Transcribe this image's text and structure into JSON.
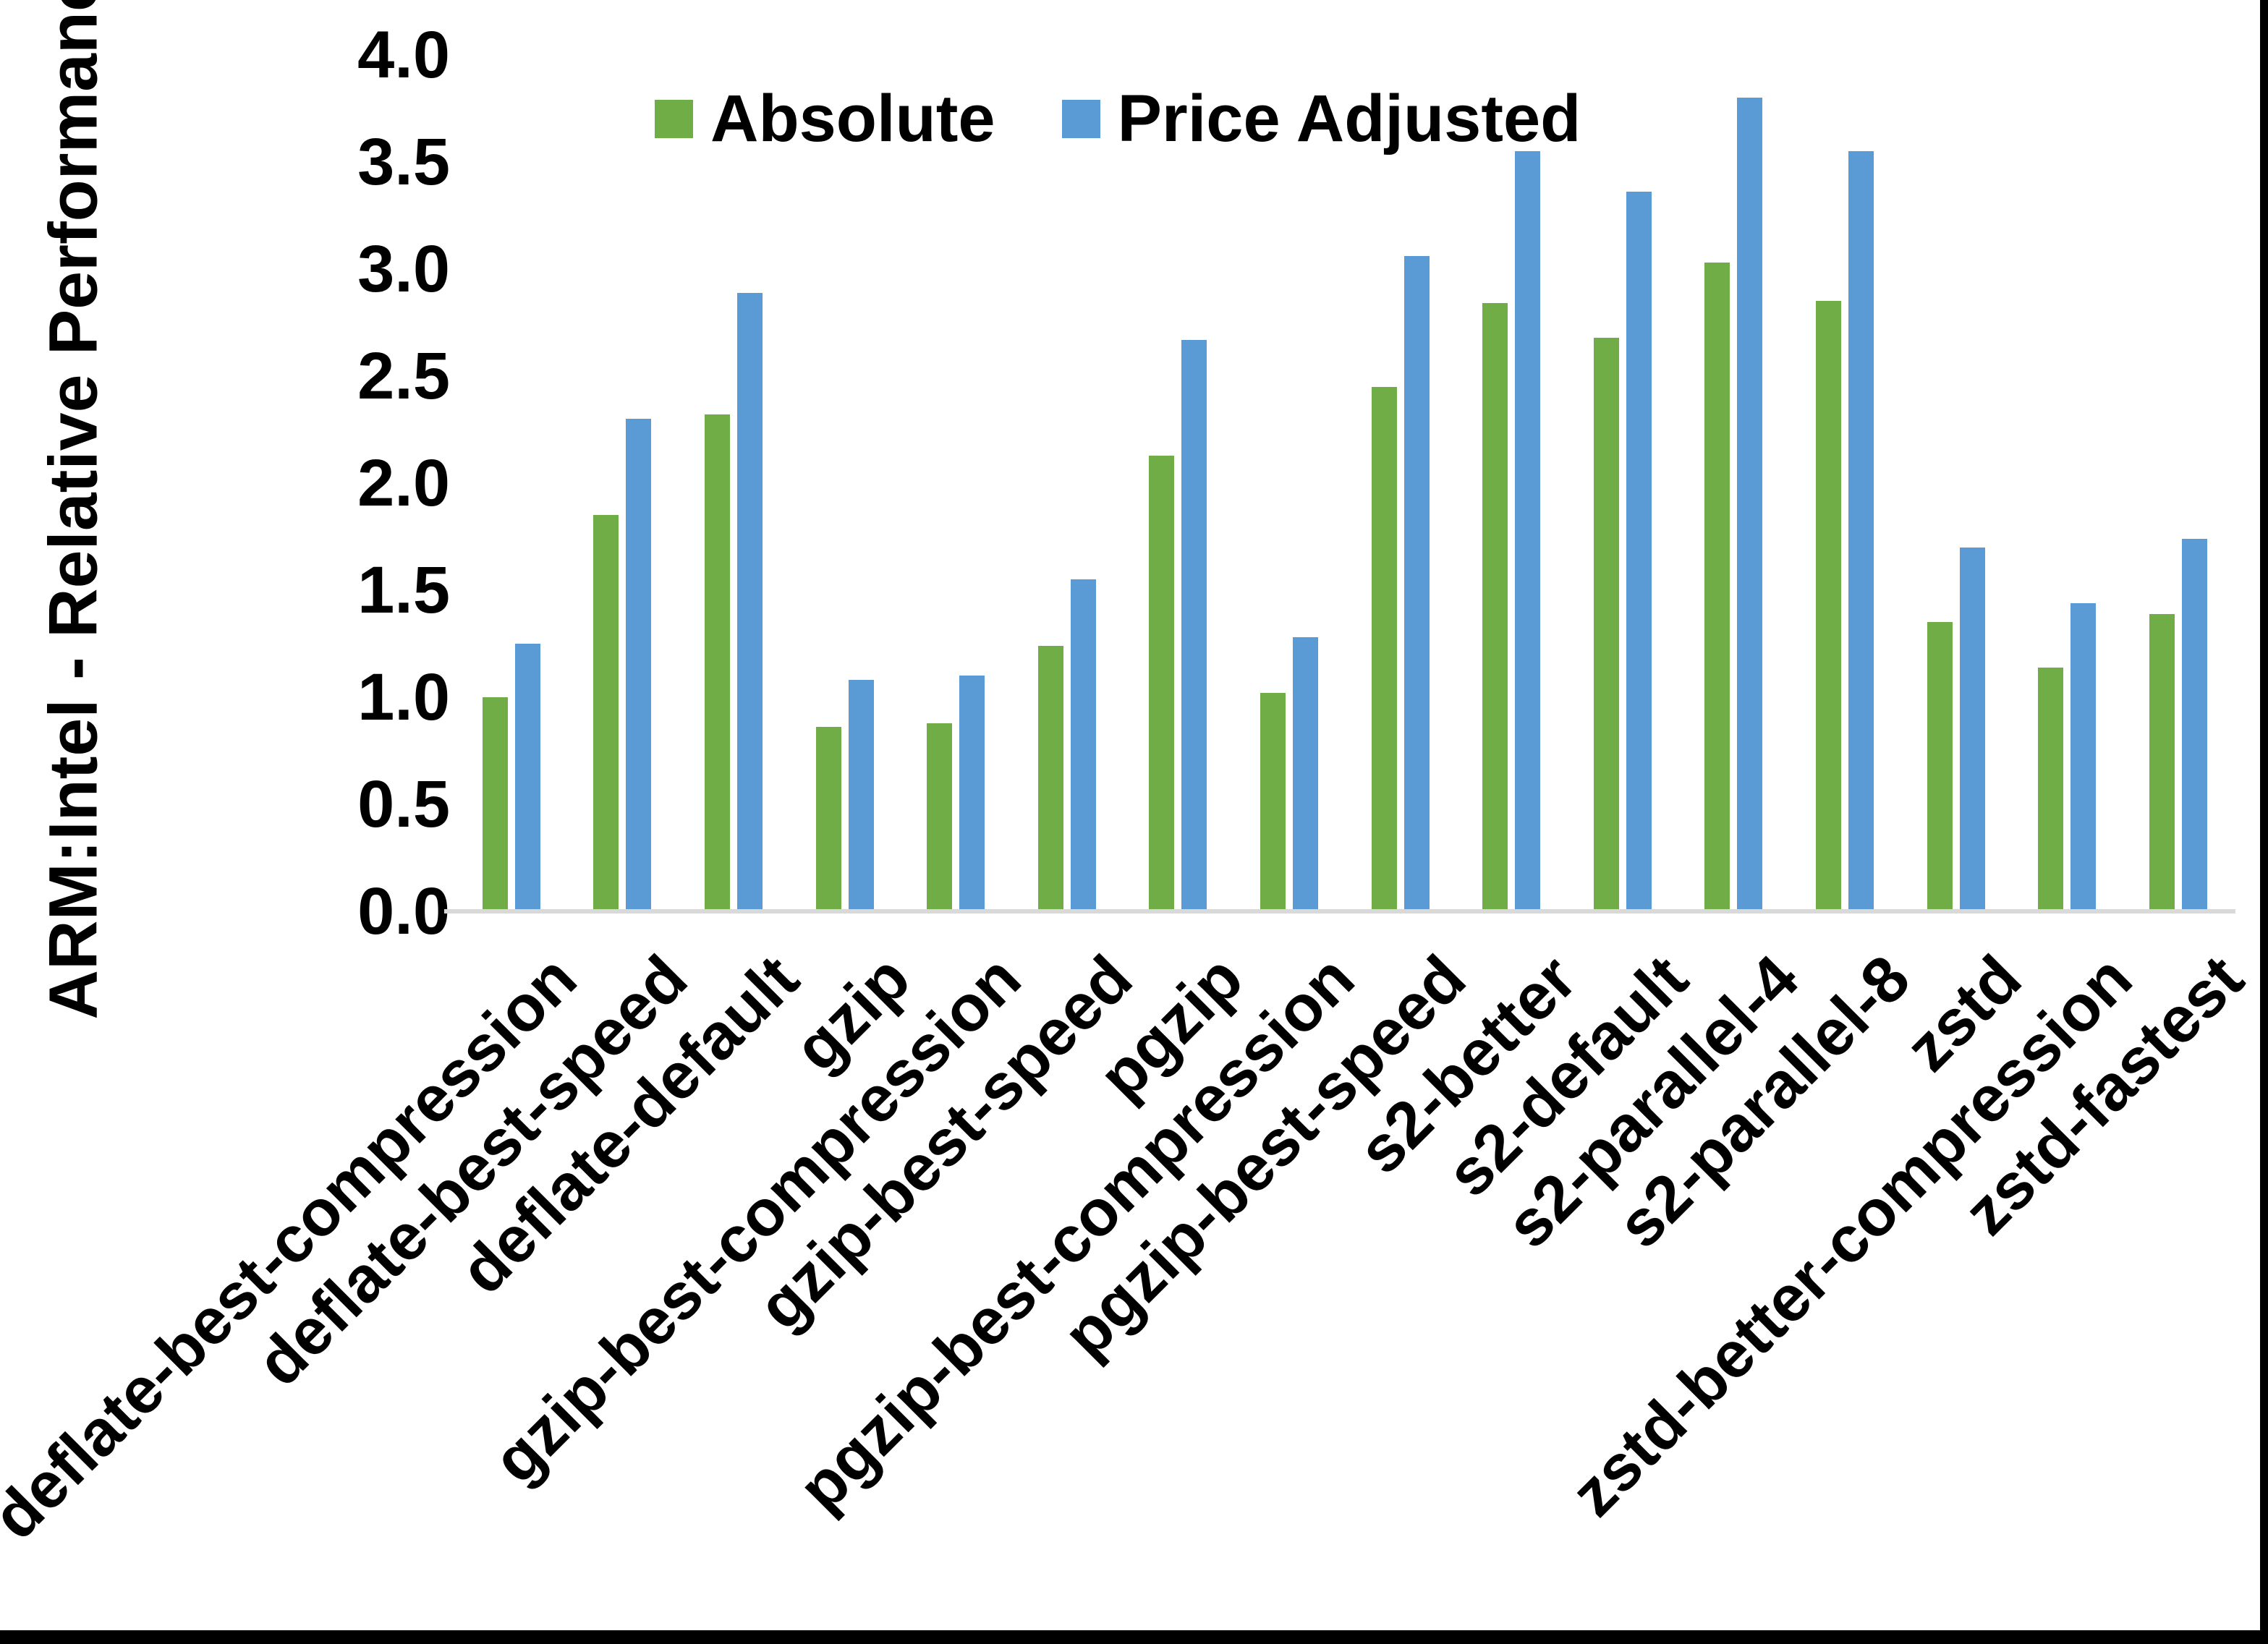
{
  "chart_data": {
    "type": "bar",
    "title": "",
    "xlabel": "",
    "ylabel": "ARM:Intel - Relative Performance",
    "ylim": [
      0.0,
      4.0
    ],
    "y_tick_step": 0.5,
    "y_ticks": [
      0.0,
      0.5,
      1.0,
      1.5,
      2.0,
      2.5,
      3.0,
      3.5,
      4.0
    ],
    "grid": false,
    "legend_position": "top-center",
    "categories": [
      "deflate-best-compression",
      "deflate-best-speed",
      "deflate-default",
      "gzip",
      "gzip-best-compression",
      "gzip-best-speed",
      "pgzip",
      "pgzip-best-compression",
      "pgzip-best-speed",
      "s2-better",
      "s2-default",
      "s2-parallel-4",
      "s2-parallel-8",
      "zstd",
      "zstd-better-compression",
      "zstd-fastest"
    ],
    "series": [
      {
        "name": "Absolute",
        "color": "#70AD47",
        "values": [
          1.0,
          1.85,
          2.32,
          0.86,
          0.88,
          1.24,
          2.13,
          1.02,
          2.45,
          2.84,
          2.68,
          3.03,
          2.85,
          1.35,
          1.14,
          1.39
        ]
      },
      {
        "name": "Price Adjusted",
        "color": "#5B9BD5",
        "values": [
          1.25,
          2.3,
          2.89,
          1.08,
          1.1,
          1.55,
          2.67,
          1.28,
          3.06,
          3.55,
          3.36,
          3.8,
          3.55,
          1.7,
          1.44,
          1.74
        ]
      }
    ]
  },
  "colors": {
    "background": "#FFFFFF",
    "axis_line": "#D9D9D9",
    "text": "#000000",
    "page_border": "#000000",
    "series_absolute": "#70AD47",
    "series_price_adjusted": "#5B9BD5"
  }
}
